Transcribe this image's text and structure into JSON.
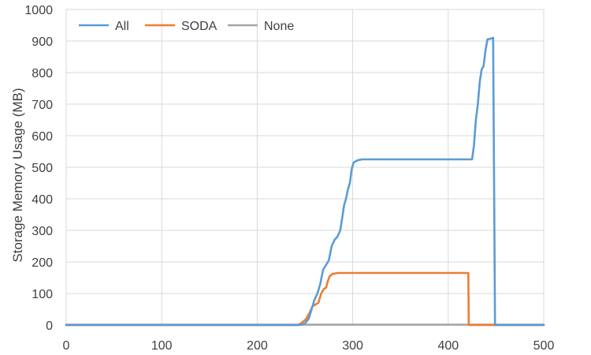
{
  "chart_data": {
    "type": "line",
    "title": "",
    "xlabel": "",
    "ylabel": "Storage Memory Usage (MB)",
    "xlim": [
      0,
      500
    ],
    "ylim": [
      0,
      1000
    ],
    "x_ticks": [
      0,
      100,
      200,
      300,
      400,
      500
    ],
    "y_ticks": [
      0,
      100,
      200,
      300,
      400,
      500,
      600,
      700,
      800,
      900,
      1000
    ],
    "grid": true,
    "legend_position": "top-left",
    "series": [
      {
        "name": "All",
        "color": "#5B9BD5",
        "points": [
          [
            0,
            0
          ],
          [
            245,
            0
          ],
          [
            250,
            5
          ],
          [
            254,
            20
          ],
          [
            257,
            50
          ],
          [
            260,
            80
          ],
          [
            263,
            100
          ],
          [
            266,
            130
          ],
          [
            269,
            175
          ],
          [
            272,
            190
          ],
          [
            275,
            205
          ],
          [
            278,
            250
          ],
          [
            281,
            270
          ],
          [
            284,
            280
          ],
          [
            287,
            300
          ],
          [
            289,
            340
          ],
          [
            291,
            380
          ],
          [
            293,
            400
          ],
          [
            295,
            430
          ],
          [
            297,
            450
          ],
          [
            299,
            495
          ],
          [
            301,
            515
          ],
          [
            305,
            522
          ],
          [
            310,
            525
          ],
          [
            350,
            525
          ],
          [
            400,
            525
          ],
          [
            425,
            525
          ],
          [
            427,
            570
          ],
          [
            429,
            650
          ],
          [
            431,
            700
          ],
          [
            433,
            770
          ],
          [
            435,
            810
          ],
          [
            437,
            820
          ],
          [
            439,
            870
          ],
          [
            441,
            905
          ],
          [
            445,
            908
          ],
          [
            447,
            910
          ],
          [
            449,
            0
          ],
          [
            500,
            0
          ]
        ]
      },
      {
        "name": "SODA",
        "color": "#ED7D31",
        "points": [
          [
            0,
            0
          ],
          [
            243,
            0
          ],
          [
            247,
            8
          ],
          [
            251,
            18
          ],
          [
            255,
            40
          ],
          [
            258,
            60
          ],
          [
            261,
            65
          ],
          [
            264,
            70
          ],
          [
            267,
            100
          ],
          [
            270,
            115
          ],
          [
            272,
            118
          ],
          [
            274,
            140
          ],
          [
            276,
            155
          ],
          [
            279,
            162
          ],
          [
            285,
            165
          ],
          [
            300,
            165
          ],
          [
            350,
            165
          ],
          [
            400,
            165
          ],
          [
            419,
            165
          ],
          [
            421,
            165
          ],
          [
            421.5,
            0
          ],
          [
            500,
            0
          ]
        ]
      },
      {
        "name": "None",
        "color": "#A5A5A5",
        "points": [
          [
            0,
            1
          ],
          [
            100,
            1
          ],
          [
            200,
            1
          ],
          [
            300,
            1
          ],
          [
            400,
            1
          ],
          [
            500,
            1
          ]
        ]
      }
    ]
  }
}
